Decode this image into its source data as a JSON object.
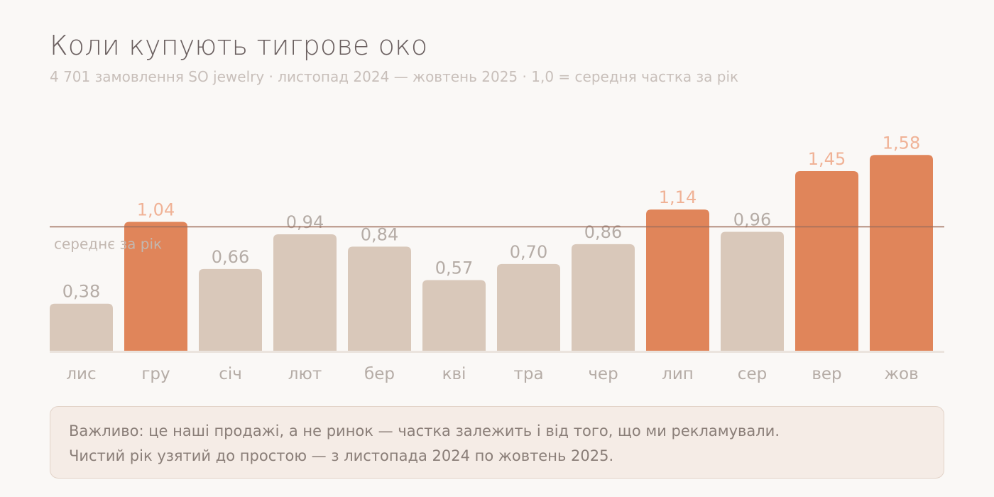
{
  "header": {
    "title": "Коли купують тигрове око",
    "subtitle": "4 701 замовлення SO jewelry · листопад 2024 — жовтень 2025 · 1,0 = середня частка за рік"
  },
  "chart_data": {
    "type": "bar",
    "categories": [
      "лис",
      "гру",
      "січ",
      "лют",
      "бер",
      "кві",
      "тра",
      "чер",
      "лип",
      "сер",
      "вер",
      "жов"
    ],
    "values": [
      0.38,
      1.04,
      0.66,
      0.94,
      0.84,
      0.57,
      0.7,
      0.86,
      1.14,
      0.96,
      1.45,
      1.58
    ],
    "value_labels": [
      "0,38",
      "1,04",
      "0,66",
      "0,94",
      "0,84",
      "0,57",
      "0,70",
      "0,86",
      "1,14",
      "0,96",
      "1,45",
      "1,58"
    ],
    "highlighted": [
      false,
      true,
      false,
      false,
      false,
      false,
      false,
      false,
      true,
      false,
      true,
      true
    ],
    "reference_line": {
      "value": 1.0,
      "label": "середнє за рік"
    },
    "ylim": [
      0,
      1.6
    ],
    "grid": false,
    "colors": {
      "base": "#d9c8ba",
      "highlight": "#e0855a",
      "base_label": "#b5aca6",
      "highlight_label": "#f0b296",
      "reference_line": "#9e6e5c",
      "reference_label": "#c2b7b0",
      "baseline": "#ebe4de",
      "category_label": "#b5aca6"
    }
  },
  "note": {
    "line1": "Важливо: це наші продажі, а не ринок — частка залежить і від того, що ми рекламували.",
    "line2": "Чистий рік узятий до простою — з листопада 2024 по жовтень 2025."
  }
}
